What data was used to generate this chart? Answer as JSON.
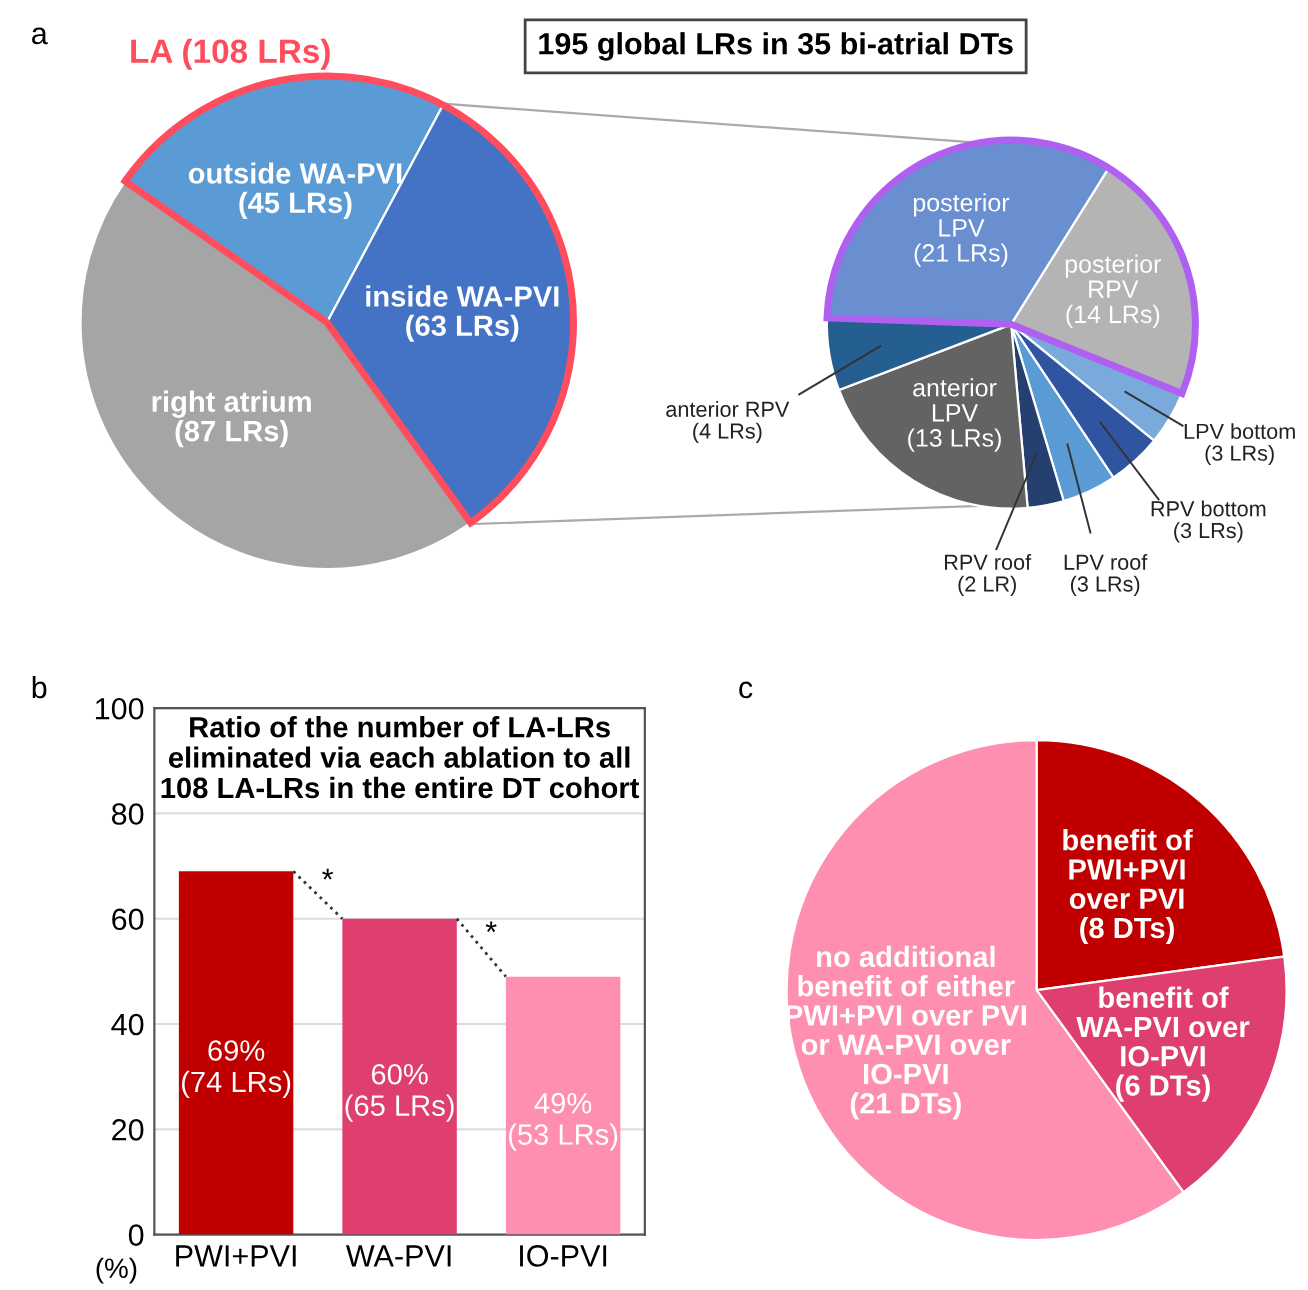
{
  "chart_data": [
    {
      "type": "pie",
      "title": "195 global LRs in 35 bi-atrial DTs",
      "annotations": [
        "a",
        "LA (108 LRs)"
      ],
      "categories": [
        "outside WA-PVI",
        "inside WA-PVI",
        "right atrium"
      ],
      "values": [
        45,
        63,
        87
      ],
      "value_labels": [
        "(45 LRs)",
        "(63 LRs)",
        "(87 LRs)"
      ],
      "colors": [
        "#5b9bd5",
        "#4472c4",
        "#a5a5a5"
      ]
    },
    {
      "type": "pie",
      "categories": [
        "posterior\nLPV",
        "posterior\nRPV",
        "LPV bottom",
        "RPV bottom",
        "LPV roof",
        "RPV roof",
        "anterior\nLPV",
        "anterior RPV"
      ],
      "values": [
        21,
        14,
        3,
        3,
        3,
        2,
        13,
        4
      ],
      "value_labels": [
        "(21 LRs)",
        "(14 LRs)",
        "(3 LRs)",
        "(3 LRs)",
        "(3 LRs)",
        "(2 LR)",
        "(13 LRs)",
        "(4 LRs)"
      ],
      "colors": [
        "#6a8fd0",
        "#b4b4b4",
        "#7aa9dc",
        "#2f55a0",
        "#5b9bd5",
        "#23406e",
        "#636363",
        "#255e91"
      ]
    },
    {
      "type": "bar",
      "title": "Ratio of the number of LA-LRs\neliminated via each ablation to all\n108 LA-LRs in the entire DT cohort",
      "annotations": [
        "b",
        "*",
        "*"
      ],
      "ylabel": "(%)",
      "categories": [
        "PWI+PVI",
        "WA-PVI",
        "IO-PVI"
      ],
      "values": [
        69,
        60,
        49
      ],
      "value_labels": [
        "69%\n(74 LRs)",
        "60%\n(65 LRs)",
        "49%\n(53 LRs)"
      ],
      "colors": [
        "#c00000",
        "#de3f6f",
        "#ff8fb0"
      ],
      "ylim": [
        0,
        100
      ],
      "yticks": [
        0,
        20,
        40,
        60,
        80,
        100
      ],
      "grid": "y"
    },
    {
      "type": "pie",
      "annotations": [
        "c"
      ],
      "categories": [
        "benefit of\nPWI+PVI\nover PVI",
        "benefit of\nWA-PVI over\nIO-PVI",
        "no additional\nbenefit of either\nPWI+PVI over PVI\nor WA-PVI over\nIO-PVI"
      ],
      "values": [
        8,
        6,
        21
      ],
      "value_labels": [
        "(8 DTs)",
        "(6 DTs)",
        "(21 DTs)"
      ],
      "colors": [
        "#c00000",
        "#de3f6f",
        "#ff8fb0"
      ]
    }
  ]
}
